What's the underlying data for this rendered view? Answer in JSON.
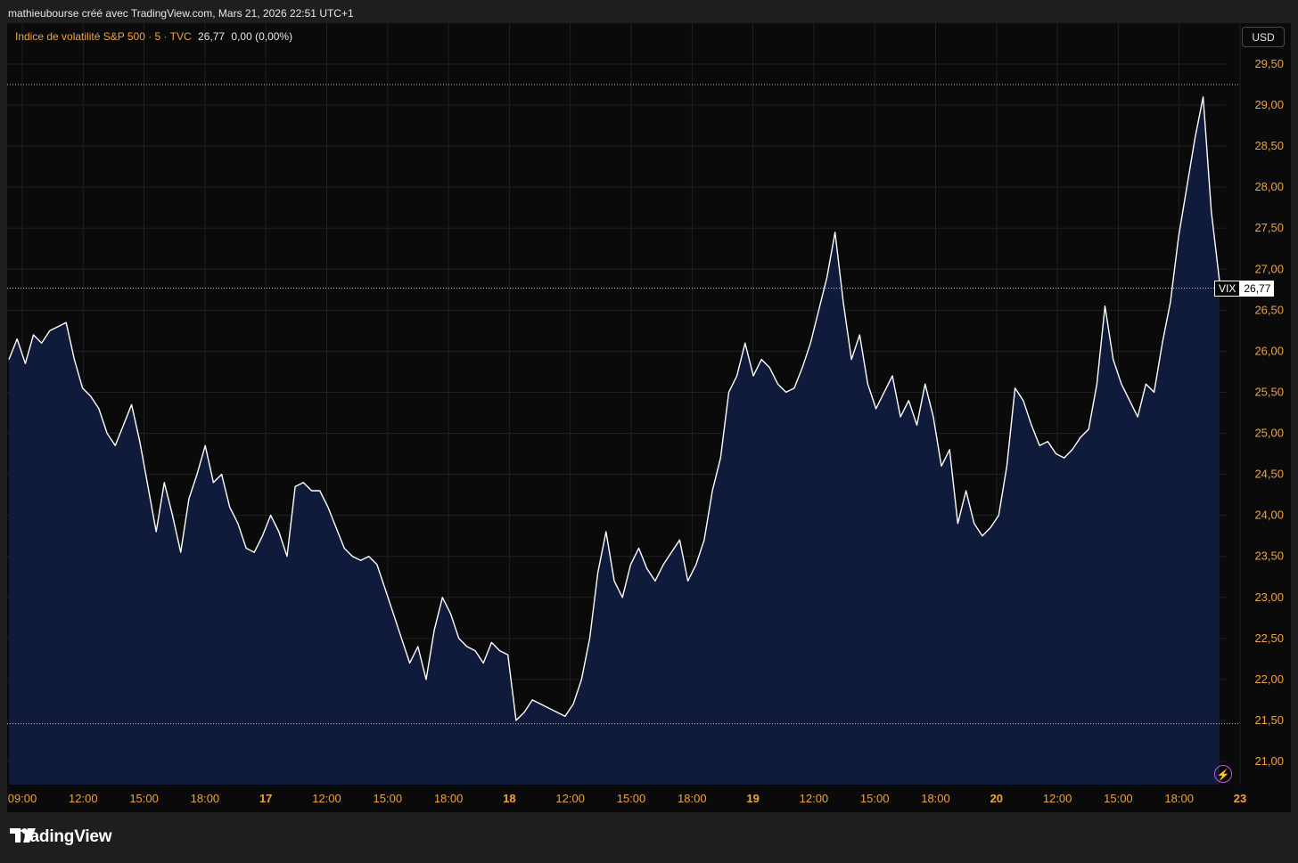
{
  "header": {
    "attribution": "mathieubourse créé avec TradingView.com, Mars 21, 2026 22:51 UTC+1"
  },
  "legend": {
    "symbol_name": "Indice de volatilité S&P 500 · 5 · TVC",
    "last": "26,77",
    "change": "0,00 (0,00%)"
  },
  "currency_button": "USD",
  "price_tag": {
    "name": "VIX",
    "value": "26,77"
  },
  "footer": {
    "brand": "TradingView"
  },
  "colors": {
    "line": "#ffffff",
    "area": "#101b3b",
    "axis_text": "#f0a33a",
    "grid": "#1e2024",
    "background": "#0a0a0b"
  },
  "icons": [
    "tradingview-logo-icon",
    "lightning-icon"
  ],
  "chart_data": {
    "type": "area",
    "symbol": "VIX",
    "ylim": [
      20.6,
      29.8
    ],
    "y_ticks": [
      "21,00",
      "21,50",
      "22,00",
      "22,50",
      "23,00",
      "23,50",
      "24,00",
      "24,50",
      "25,00",
      "25,50",
      "26,00",
      "26,50",
      "27,00",
      "27,50",
      "28,00",
      "28,50",
      "29,00",
      "29,50"
    ],
    "x_ticks": [
      "09:00",
      "12:00",
      "15:00",
      "18:00",
      "17",
      "12:00",
      "15:00",
      "18:00",
      "18",
      "12:00",
      "15:00",
      "18:00",
      "19",
      "12:00",
      "15:00",
      "18:00",
      "20",
      "12:00",
      "15:00",
      "18:00",
      "23"
    ],
    "x_tick_bold": [
      false,
      false,
      false,
      false,
      true,
      false,
      false,
      false,
      true,
      false,
      false,
      false,
      true,
      false,
      false,
      false,
      true,
      false,
      false,
      false,
      true
    ],
    "horizontal_lines": [
      {
        "value": 29.25,
        "style": "dotted"
      },
      {
        "value": 26.77,
        "style": "dotted"
      },
      {
        "value": 21.46,
        "style": "dotted"
      }
    ],
    "last_value": 26.77,
    "series": [
      {
        "values": [
          25.9,
          26.15,
          25.85,
          26.2,
          26.1,
          26.25,
          26.3,
          26.35,
          25.9,
          25.55,
          25.45,
          25.3,
          25.0,
          24.85,
          25.1,
          25.35,
          24.9,
          24.35,
          23.8,
          24.4,
          24.0,
          23.55,
          24.2,
          24.5,
          24.85,
          24.4,
          24.5,
          24.1,
          23.9,
          23.6,
          23.55,
          23.75,
          24.0,
          23.8,
          23.5,
          24.35,
          24.4,
          24.3,
          24.3,
          24.1,
          23.85,
          23.6,
          23.5,
          23.45,
          23.5,
          23.4,
          23.1,
          22.8,
          22.5,
          22.2,
          22.4,
          22.0,
          22.6,
          23.0,
          22.8,
          22.5,
          22.4,
          22.35,
          22.2,
          22.45,
          22.35,
          22.3,
          21.5,
          21.6,
          21.75,
          21.7,
          21.65,
          21.6,
          21.55,
          21.7,
          22.0,
          22.5,
          23.3,
          23.8,
          23.2,
          23.0,
          23.4,
          23.6,
          23.35,
          23.2,
          23.4,
          23.55,
          23.7,
          23.2,
          23.4,
          23.7,
          24.3,
          24.7,
          25.5,
          25.7,
          26.1,
          25.7,
          25.9,
          25.8,
          25.6,
          25.5,
          25.55,
          25.8,
          26.1,
          26.5,
          26.9,
          27.45,
          26.6,
          25.9,
          26.2,
          25.6,
          25.3,
          25.5,
          25.7,
          25.2,
          25.4,
          25.1,
          25.6,
          25.2,
          24.6,
          24.8,
          23.9,
          24.3,
          23.9,
          23.75,
          23.85,
          24.0,
          24.6,
          25.55,
          25.4,
          25.1,
          24.85,
          24.9,
          24.75,
          24.7,
          24.8,
          24.95,
          25.05,
          25.6,
          26.55,
          25.9,
          25.6,
          25.4,
          25.2,
          25.6,
          25.5,
          26.1,
          26.6,
          27.4,
          28.0,
          28.6,
          29.1,
          27.7,
          26.85
        ],
        "color": "#ffffff"
      }
    ]
  }
}
